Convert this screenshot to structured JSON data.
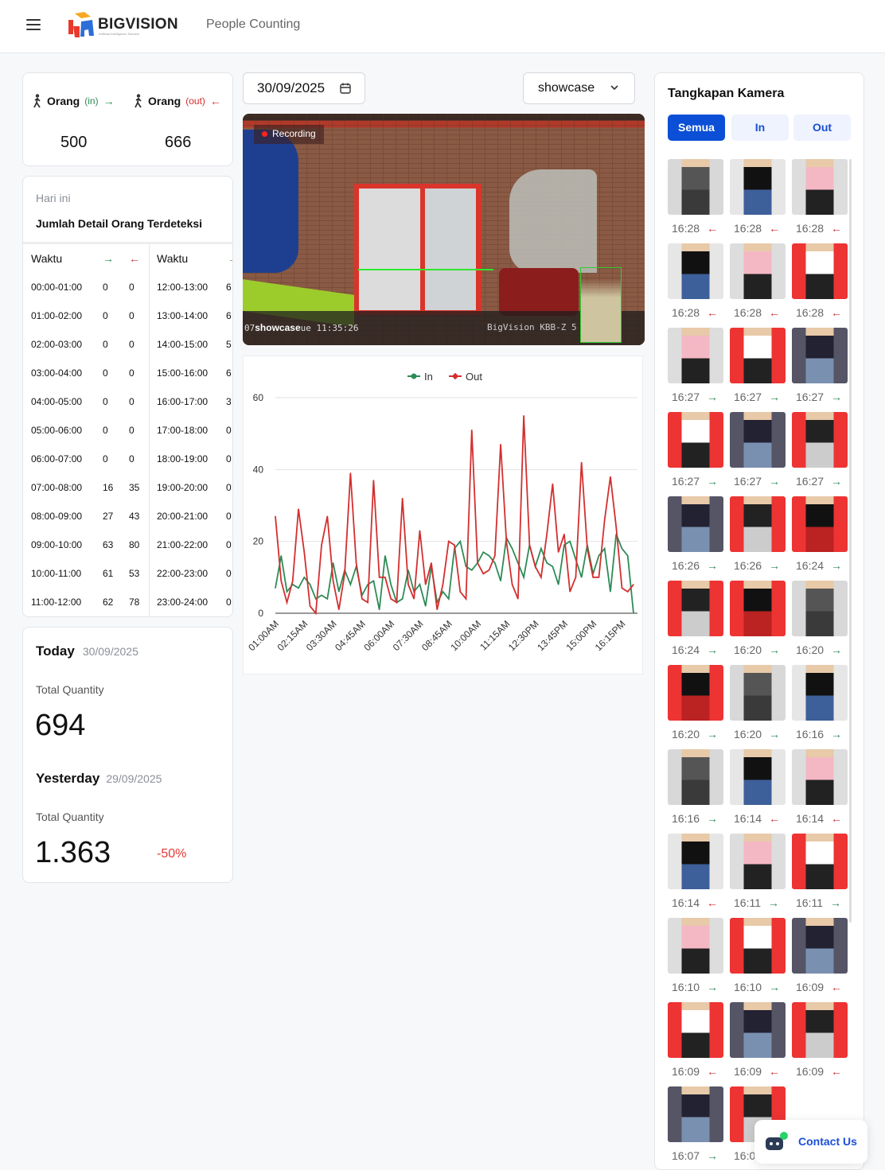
{
  "header": {
    "brand": "BIGVISION",
    "brand_tagline": "Artificial Intelligence Solution",
    "page_title": "People Counting"
  },
  "summary": {
    "in_label": "Orang",
    "in_suffix": "(in)",
    "out_label": "Orang",
    "out_suffix": "(out)",
    "in_value": "500",
    "out_value": "666",
    "in_color": "#2e8b57",
    "out_color": "#d32f2f"
  },
  "detail": {
    "subtitle": "Hari ini",
    "title": "Jumlah Detail Orang Terdeteksi",
    "col_header": "Waktu",
    "left_rows": [
      [
        "00:00-01:00",
        "0",
        "0"
      ],
      [
        "01:00-02:00",
        "0",
        "0"
      ],
      [
        "02:00-03:00",
        "0",
        "0"
      ],
      [
        "03:00-04:00",
        "0",
        "0"
      ],
      [
        "04:00-05:00",
        "0",
        "0"
      ],
      [
        "05:00-06:00",
        "0",
        "0"
      ],
      [
        "06:00-07:00",
        "0",
        "0"
      ],
      [
        "07:00-08:00",
        "16",
        "35"
      ],
      [
        "08:00-09:00",
        "27",
        "43"
      ],
      [
        "09:00-10:00",
        "63",
        "80"
      ],
      [
        "10:00-11:00",
        "61",
        "53"
      ],
      [
        "11:00-12:00",
        "62",
        "78"
      ]
    ],
    "right_rows": [
      [
        "12:00-13:00",
        "6"
      ],
      [
        "13:00-14:00",
        "6"
      ],
      [
        "14:00-15:00",
        "5"
      ],
      [
        "15:00-16:00",
        "6"
      ],
      [
        "16:00-17:00",
        "3"
      ],
      [
        "17:00-18:00",
        "0"
      ],
      [
        "18:00-19:00",
        "0"
      ],
      [
        "19:00-20:00",
        "0"
      ],
      [
        "20:00-21:00",
        "0"
      ],
      [
        "21:00-22:00",
        "0"
      ],
      [
        "22:00-23:00",
        "0"
      ],
      [
        "23:00-24:00",
        "0"
      ]
    ]
  },
  "totals": {
    "today_label": "Today",
    "today_date": "30/09/2025",
    "qty_label": "Total Quantity",
    "today_value": "694",
    "yesterday_label": "Yesterday",
    "yesterday_date": "29/09/2025",
    "yesterday_value": "1.363",
    "change": "-50%"
  },
  "filters": {
    "date": "30/09/2025",
    "camera": "showcase"
  },
  "video": {
    "badge": "Recording",
    "camera_name": "showcase",
    "osd_time": "ue 11:35:26",
    "osd_prefix": "07",
    "osd_id": "BigVision KBB-Z 5"
  },
  "chart_data": {
    "type": "line",
    "legend_position": "top",
    "grid": true,
    "ylim": [
      0,
      60
    ],
    "yticks": [
      0,
      20,
      40,
      60
    ],
    "tick_labels": [
      "01:00AM",
      "02:15AM",
      "03:30AM",
      "04:45AM",
      "06:00AM",
      "07:30AM",
      "08:45AM",
      "10:00AM",
      "11:15AM",
      "12:30PM",
      "13:45PM",
      "15:00PM",
      "16:15PM"
    ],
    "x": [
      "01:00AM",
      "01:15AM",
      "01:30AM",
      "01:45AM",
      "02:00AM",
      "02:15AM",
      "02:30AM",
      "02:45AM",
      "03:00AM",
      "03:15AM",
      "03:30AM",
      "03:45AM",
      "04:00AM",
      "04:15AM",
      "04:30AM",
      "04:45AM",
      "05:00AM",
      "05:15AM",
      "05:30AM",
      "05:45AM",
      "06:00AM",
      "06:30AM",
      "06:45AM",
      "07:00AM",
      "07:15AM",
      "07:30AM",
      "07:45AM",
      "08:00AM",
      "08:15AM",
      "08:30AM",
      "08:45AM",
      "09:00AM",
      "09:15AM",
      "09:30AM",
      "09:45AM",
      "10:00AM",
      "10:15AM",
      "10:30AM",
      "10:45AM",
      "11:00AM",
      "11:15AM",
      "11:30AM",
      "11:45AM",
      "12:00PM",
      "12:15PM",
      "12:30PM",
      "12:45PM",
      "13:00PM",
      "13:15PM",
      "13:30PM",
      "13:45PM",
      "14:00PM",
      "14:15PM",
      "14:30PM",
      "14:45PM",
      "15:00PM",
      "15:15PM",
      "15:30PM",
      "15:45PM",
      "16:00PM",
      "16:15PM",
      "16:30PM",
      "16:45PM"
    ],
    "series": [
      {
        "name": "In",
        "color": "#2e8b57",
        "values": [
          7,
          16,
          6,
          8,
          7,
          10,
          8,
          4,
          5,
          4,
          14,
          6,
          12,
          8,
          13,
          5,
          8,
          9,
          1,
          16,
          8,
          3,
          4,
          12,
          6,
          8,
          2,
          13,
          3,
          6,
          4,
          18,
          20,
          13,
          12,
          14,
          17,
          16,
          14,
          9,
          21,
          18,
          14,
          10,
          19,
          13,
          18,
          14,
          13,
          8,
          19,
          20,
          15,
          10,
          19,
          11,
          16,
          18,
          6,
          22,
          18,
          16,
          0
        ]
      },
      {
        "name": "Out",
        "color": "#d32f2f",
        "values": [
          27,
          9,
          3,
          9,
          29,
          17,
          2,
          0,
          19,
          27,
          9,
          1,
          11,
          39,
          14,
          4,
          3,
          37,
          10,
          10,
          4,
          3,
          32,
          8,
          4,
          23,
          8,
          14,
          1,
          8,
          20,
          19,
          6,
          4,
          51,
          14,
          11,
          12,
          16,
          47,
          20,
          8,
          4,
          55,
          19,
          13,
          10,
          22,
          36,
          17,
          22,
          6,
          10,
          42,
          18,
          10,
          10,
          26,
          38,
          24,
          7,
          6,
          8
        ]
      }
    ]
  },
  "captures": {
    "title": "Tangkapan Kamera",
    "tabs": [
      "Semua",
      "In",
      "Out"
    ],
    "active_tab": "Semua",
    "items": [
      [
        "16:28",
        "out"
      ],
      [
        "16:28",
        "out"
      ],
      [
        "16:28",
        "out"
      ],
      [
        "16:28",
        "out"
      ],
      [
        "16:28",
        "out"
      ],
      [
        "16:28",
        "out"
      ],
      [
        "16:27",
        "in"
      ],
      [
        "16:27",
        "in"
      ],
      [
        "16:27",
        "in"
      ],
      [
        "16:27",
        "in"
      ],
      [
        "16:27",
        "in"
      ],
      [
        "16:27",
        "in"
      ],
      [
        "16:26",
        "in"
      ],
      [
        "16:26",
        "in"
      ],
      [
        "16:24",
        "in"
      ],
      [
        "16:24",
        "in"
      ],
      [
        "16:20",
        "in"
      ],
      [
        "16:20",
        "in"
      ],
      [
        "16:20",
        "in"
      ],
      [
        "16:20",
        "in"
      ],
      [
        "16:16",
        "in"
      ],
      [
        "16:16",
        "in"
      ],
      [
        "16:14",
        "out"
      ],
      [
        "16:14",
        "out"
      ],
      [
        "16:14",
        "out"
      ],
      [
        "16:11",
        "in"
      ],
      [
        "16:11",
        "in"
      ],
      [
        "16:10",
        "in"
      ],
      [
        "16:10",
        "in"
      ],
      [
        "16:09",
        "out"
      ],
      [
        "16:09",
        "out"
      ],
      [
        "16:09",
        "out"
      ],
      [
        "16:09",
        "out"
      ],
      [
        "16:07",
        "in"
      ],
      [
        "16:0",
        ""
      ]
    ]
  },
  "contact": {
    "label": "Contact Us"
  }
}
